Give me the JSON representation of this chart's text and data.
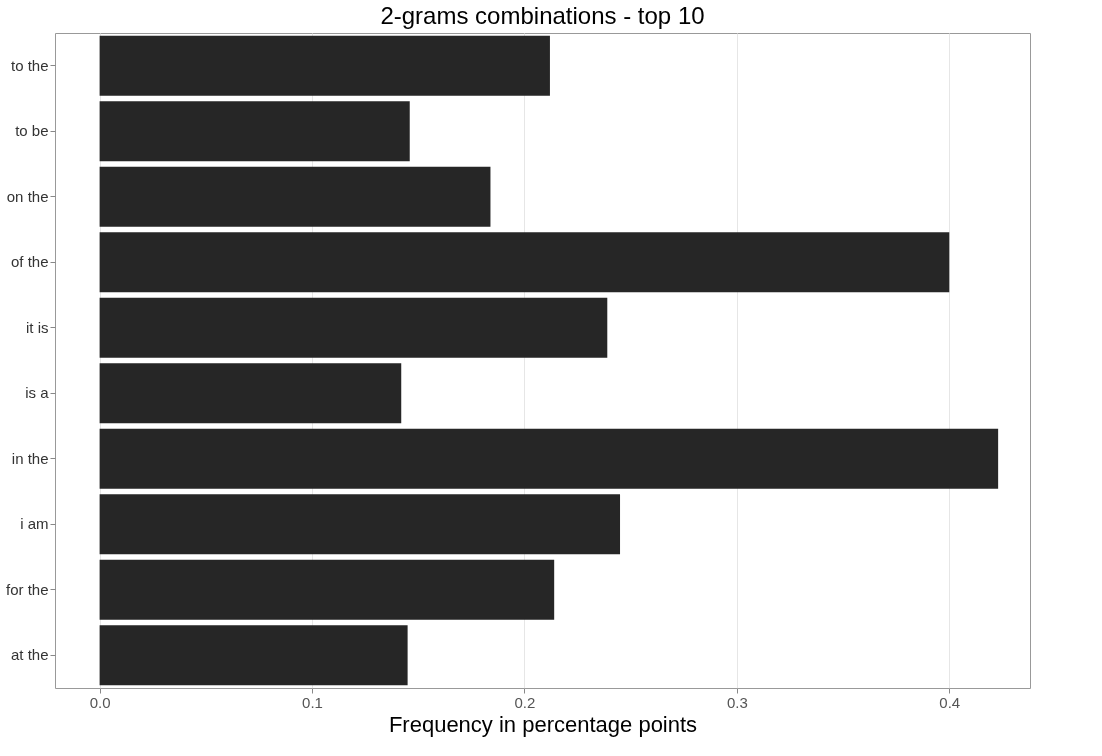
{
  "chart_data": {
    "type": "bar",
    "orientation": "horizontal",
    "title": "2-grams combinations - top 10",
    "xlabel": "Frequency in percentage points",
    "categories": [
      "to the",
      "to be",
      "on the",
      "of the",
      "it is",
      "is a",
      "in the",
      "i am",
      "for the",
      "at the"
    ],
    "values": [
      0.212,
      0.146,
      0.184,
      0.4,
      0.239,
      0.142,
      0.423,
      0.245,
      0.214,
      0.145
    ],
    "color": "#262626",
    "xlim": [
      -0.021,
      0.438
    ],
    "xticks": [
      {
        "value": 0,
        "label": "0.0"
      },
      0.1,
      0.2,
      0.3,
      0.4
    ],
    "grid": "x"
  }
}
